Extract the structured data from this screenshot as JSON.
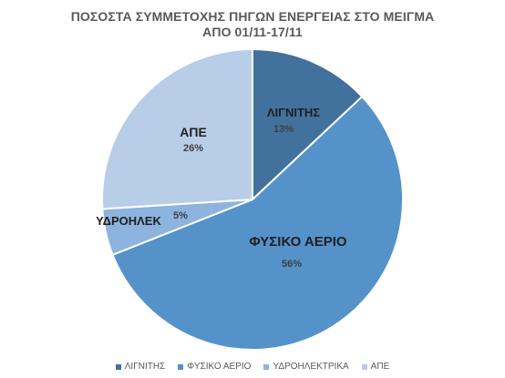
{
  "chart_data": {
    "type": "pie",
    "title_lines": [
      "ΠΟΣΟΣΤΑ ΣΥΜΜΕΤΟΧΗΣ ΠΗΓΩΝ ΕΝΕΡΓΕΙΑΣ ΣΤΟ ΜΕΙΓΜΑ",
      "ΑΠΟ 01/11-17/11"
    ],
    "slices": [
      {
        "label": "ΛΙΓΝΙΤΗΣ",
        "value": 13,
        "percent_label": "13%",
        "color": "#41719c"
      },
      {
        "label": "ΦΥΣΙΚΟ ΑΕΡΙΟ",
        "value": 56,
        "percent_label": "56%",
        "color": "#5592ca"
      },
      {
        "label": "ΥΔΡΟΗΛΕΚ",
        "value": 5,
        "percent_label": "5%",
        "color": "#8db3df"
      },
      {
        "label": "ΑΠΕ",
        "value": 26,
        "percent_label": "26%",
        "color": "#b8cde8"
      }
    ],
    "legend": [
      "ΛΙΓΝΙΤΗΣ",
      "ΦΥΣΙΚΟ ΑΕΡΙΟ",
      "ΥΔΡΟΗΛΕΚΤΡΙΚΑ",
      "ΑΠΕ"
    ],
    "legend_position": "bottom"
  }
}
